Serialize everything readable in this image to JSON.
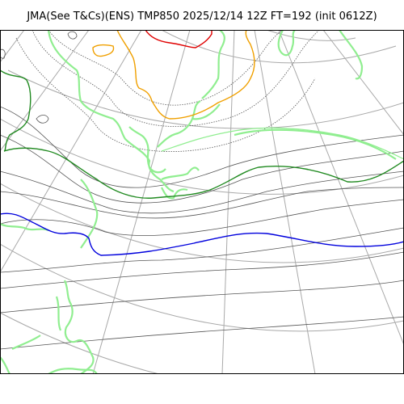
{
  "title": "JMA(See T&Cs)(ENS) TMP850 2025/12/14 12Z FT=192 (init 0612Z)",
  "colors": {
    "graticule": "#a9a9a9",
    "isotherm": "#555555",
    "isotherm_dotted": "#555555",
    "coastline": "#90ee90",
    "contour_green": "#228b22",
    "contour_light_green": "#90ee90",
    "contour_blue": "#0000dd",
    "contour_orange": "#f0a000",
    "contour_red": "#e00000",
    "frame": "#000000"
  },
  "icons": [
    "map-canvas"
  ]
}
